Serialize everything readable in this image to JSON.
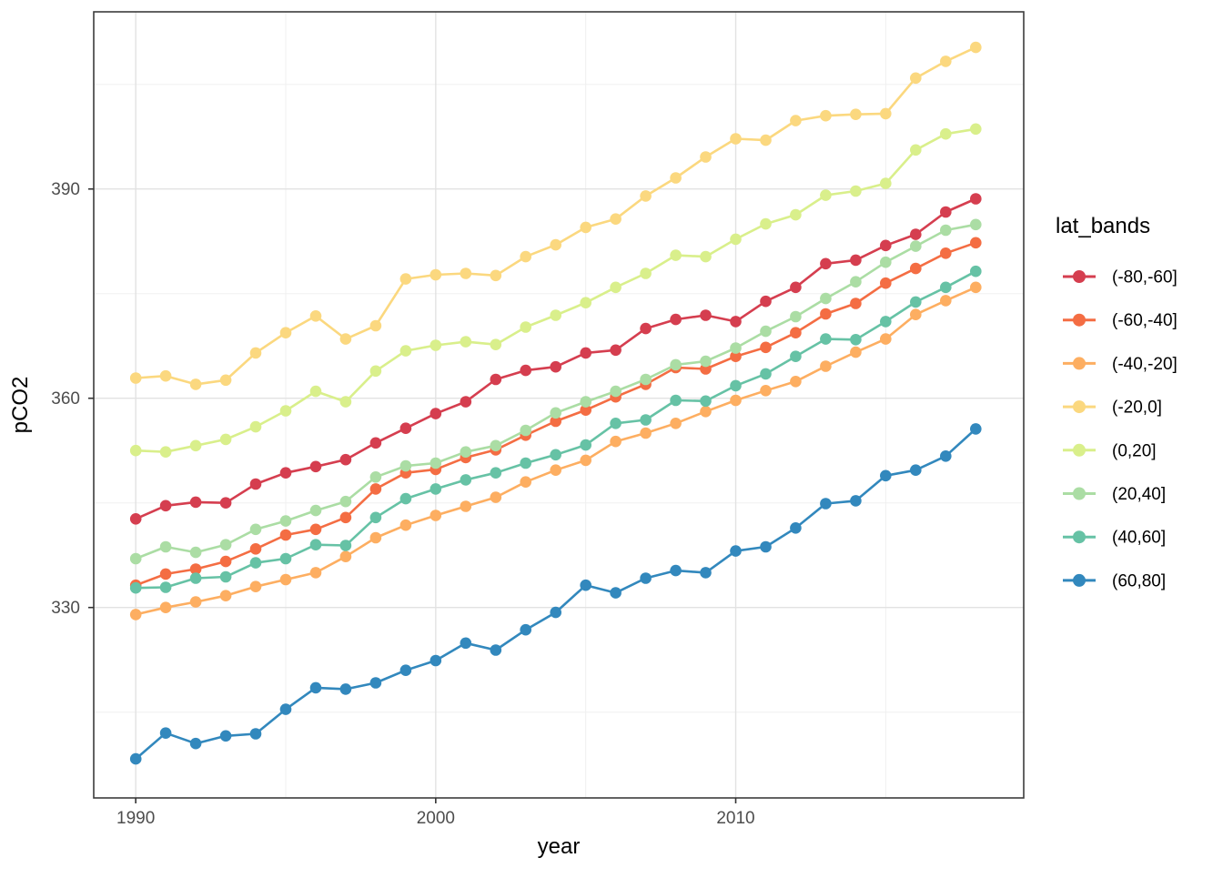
{
  "chart_data": {
    "type": "line",
    "title": "",
    "xlabel": "year",
    "ylabel": "pCO2",
    "legend_title": "lat_bands",
    "legend_position": "right",
    "grid": true,
    "x_ticks": [
      1990,
      2000,
      2010
    ],
    "x_minor_ticks": [
      1995,
      2005,
      2015
    ],
    "y_ticks": [
      330,
      360,
      390
    ],
    "y_minor_ticks": [
      315,
      345,
      375,
      405
    ],
    "xlim": [
      1988.6,
      2019.6
    ],
    "ylim": [
      302.7,
      415.4
    ],
    "x": [
      1990,
      1991,
      1992,
      1993,
      1994,
      1995,
      1996,
      1997,
      1998,
      1999,
      2000,
      2001,
      2002,
      2003,
      2004,
      2005,
      2006,
      2007,
      2008,
      2009,
      2010,
      2011,
      2012,
      2013,
      2014,
      2015,
      2016,
      2017,
      2018
    ],
    "series": [
      {
        "name": "(-80,-60]",
        "color": "#d53e4f",
        "values": [
          342.7,
          344.6,
          345.1,
          345.0,
          347.7,
          349.3,
          350.2,
          351.2,
          353.6,
          355.7,
          357.8,
          359.5,
          362.7,
          364.0,
          364.5,
          366.5,
          366.9,
          370.0,
          371.3,
          371.9,
          371.0,
          373.9,
          375.9,
          379.3,
          379.8,
          381.9,
          383.5,
          386.7,
          388.6
        ]
      },
      {
        "name": "(-60,-40]",
        "color": "#f46d43",
        "values": [
          333.2,
          334.8,
          335.5,
          336.6,
          338.4,
          340.4,
          341.2,
          342.9,
          347.0,
          349.3,
          349.8,
          351.5,
          352.6,
          354.7,
          356.7,
          358.3,
          360.2,
          362.0,
          364.4,
          364.2,
          366.0,
          367.3,
          369.4,
          372.1,
          373.6,
          376.5,
          378.6,
          380.8,
          382.3
        ]
      },
      {
        "name": "(-40,-20]",
        "color": "#fdae61",
        "values": [
          329.0,
          330.0,
          330.8,
          331.7,
          333.0,
          334.0,
          335.0,
          337.3,
          340.0,
          341.8,
          343.2,
          344.5,
          345.8,
          348.0,
          349.7,
          351.1,
          353.8,
          355.0,
          356.4,
          358.1,
          359.7,
          361.1,
          362.4,
          364.6,
          366.6,
          368.5,
          372.0,
          374.0,
          375.9
        ]
      },
      {
        "name": "(-20,0]",
        "color": "#fbd87f",
        "values": [
          362.9,
          363.2,
          362.0,
          362.6,
          366.5,
          369.4,
          371.8,
          368.5,
          370.4,
          377.1,
          377.7,
          377.9,
          377.6,
          380.3,
          382.0,
          384.5,
          385.7,
          389.0,
          391.6,
          394.6,
          397.2,
          397.0,
          399.8,
          400.5,
          400.7,
          400.8,
          405.9,
          408.3,
          410.3
        ]
      },
      {
        "name": "(0,20]",
        "color": "#d9ef8b",
        "values": [
          352.5,
          352.3,
          353.2,
          354.1,
          355.9,
          358.2,
          361.0,
          359.5,
          363.9,
          366.8,
          367.6,
          368.1,
          367.7,
          370.2,
          371.9,
          373.7,
          375.9,
          377.9,
          380.5,
          380.3,
          382.8,
          385.0,
          386.3,
          389.1,
          389.7,
          390.8,
          395.6,
          397.9,
          398.6
        ]
      },
      {
        "name": "(20,40]",
        "color": "#abdda4",
        "values": [
          337.0,
          338.7,
          337.9,
          339.0,
          341.2,
          342.4,
          343.9,
          345.2,
          348.7,
          350.3,
          350.7,
          352.3,
          353.2,
          355.4,
          357.9,
          359.5,
          361.0,
          362.7,
          364.8,
          365.3,
          367.2,
          369.6,
          371.7,
          374.3,
          376.7,
          379.5,
          381.8,
          384.1,
          384.9
        ]
      },
      {
        "name": "(40,60]",
        "color": "#66c2a5",
        "values": [
          332.8,
          332.9,
          334.2,
          334.4,
          336.4,
          337.0,
          339.0,
          338.9,
          342.9,
          345.6,
          347.0,
          348.3,
          349.3,
          350.7,
          351.9,
          353.3,
          356.4,
          356.9,
          359.7,
          359.6,
          361.8,
          363.5,
          366.0,
          368.5,
          368.4,
          371.0,
          373.8,
          375.9,
          378.2
        ]
      },
      {
        "name": "(60,80]",
        "color": "#3288bd",
        "values": [
          308.3,
          312.0,
          310.5,
          311.6,
          311.9,
          315.4,
          318.5,
          318.3,
          319.2,
          321.0,
          322.4,
          324.9,
          323.9,
          326.8,
          329.3,
          333.2,
          332.1,
          334.2,
          335.3,
          335.0,
          338.1,
          338.7,
          341.4,
          344.9,
          345.3,
          348.9,
          349.7,
          351.7,
          355.6
        ]
      }
    ]
  },
  "styles": {
    "panel_background": "#ffffff",
    "panel_border": "#3c3c3c",
    "grid_major": "#e2e2e2",
    "grid_minor": "#f0f0f0",
    "tick_color": "#333333",
    "tick_label_color": "#4d4d4d",
    "text_color": "#000000"
  }
}
